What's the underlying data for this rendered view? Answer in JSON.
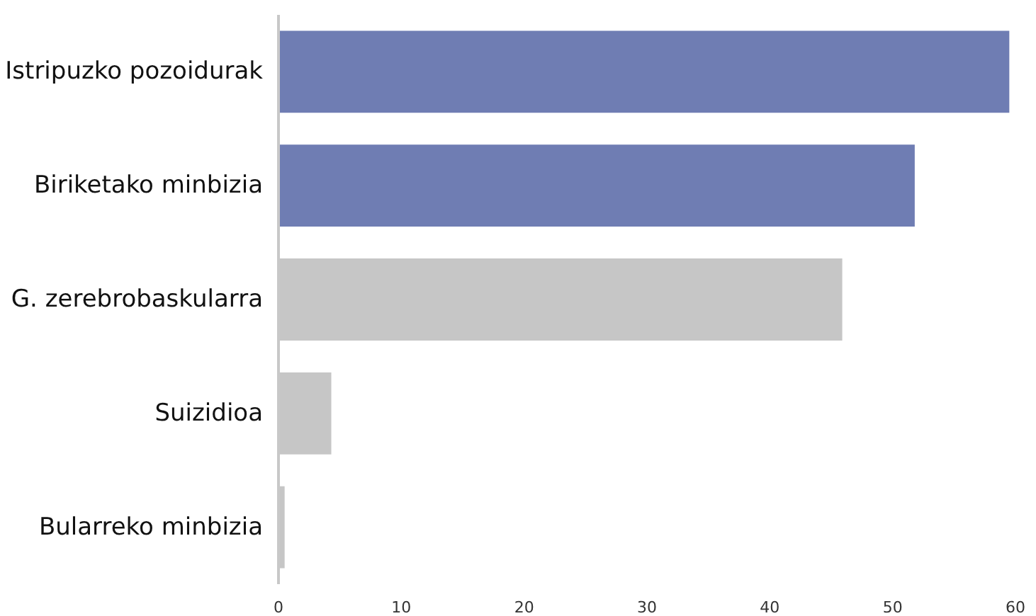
{
  "chart_data": {
    "type": "bar",
    "orientation": "horizontal",
    "categories": [
      "Istripuzko pozoidurak",
      "Biriketako minbizia",
      "G. zerebrobaskularra",
      "Suizidioa",
      "Bularreko minbizia"
    ],
    "values": [
      59.5,
      51.8,
      45.9,
      4.3,
      0.5
    ],
    "colors": [
      "#6f7db3",
      "#6f7db3",
      "#c6c6c6",
      "#c6c6c6",
      "#c6c6c6"
    ],
    "xlim": [
      0,
      60
    ],
    "xticks": [
      0,
      10,
      20,
      30,
      40,
      50,
      60
    ],
    "grid": false
  }
}
